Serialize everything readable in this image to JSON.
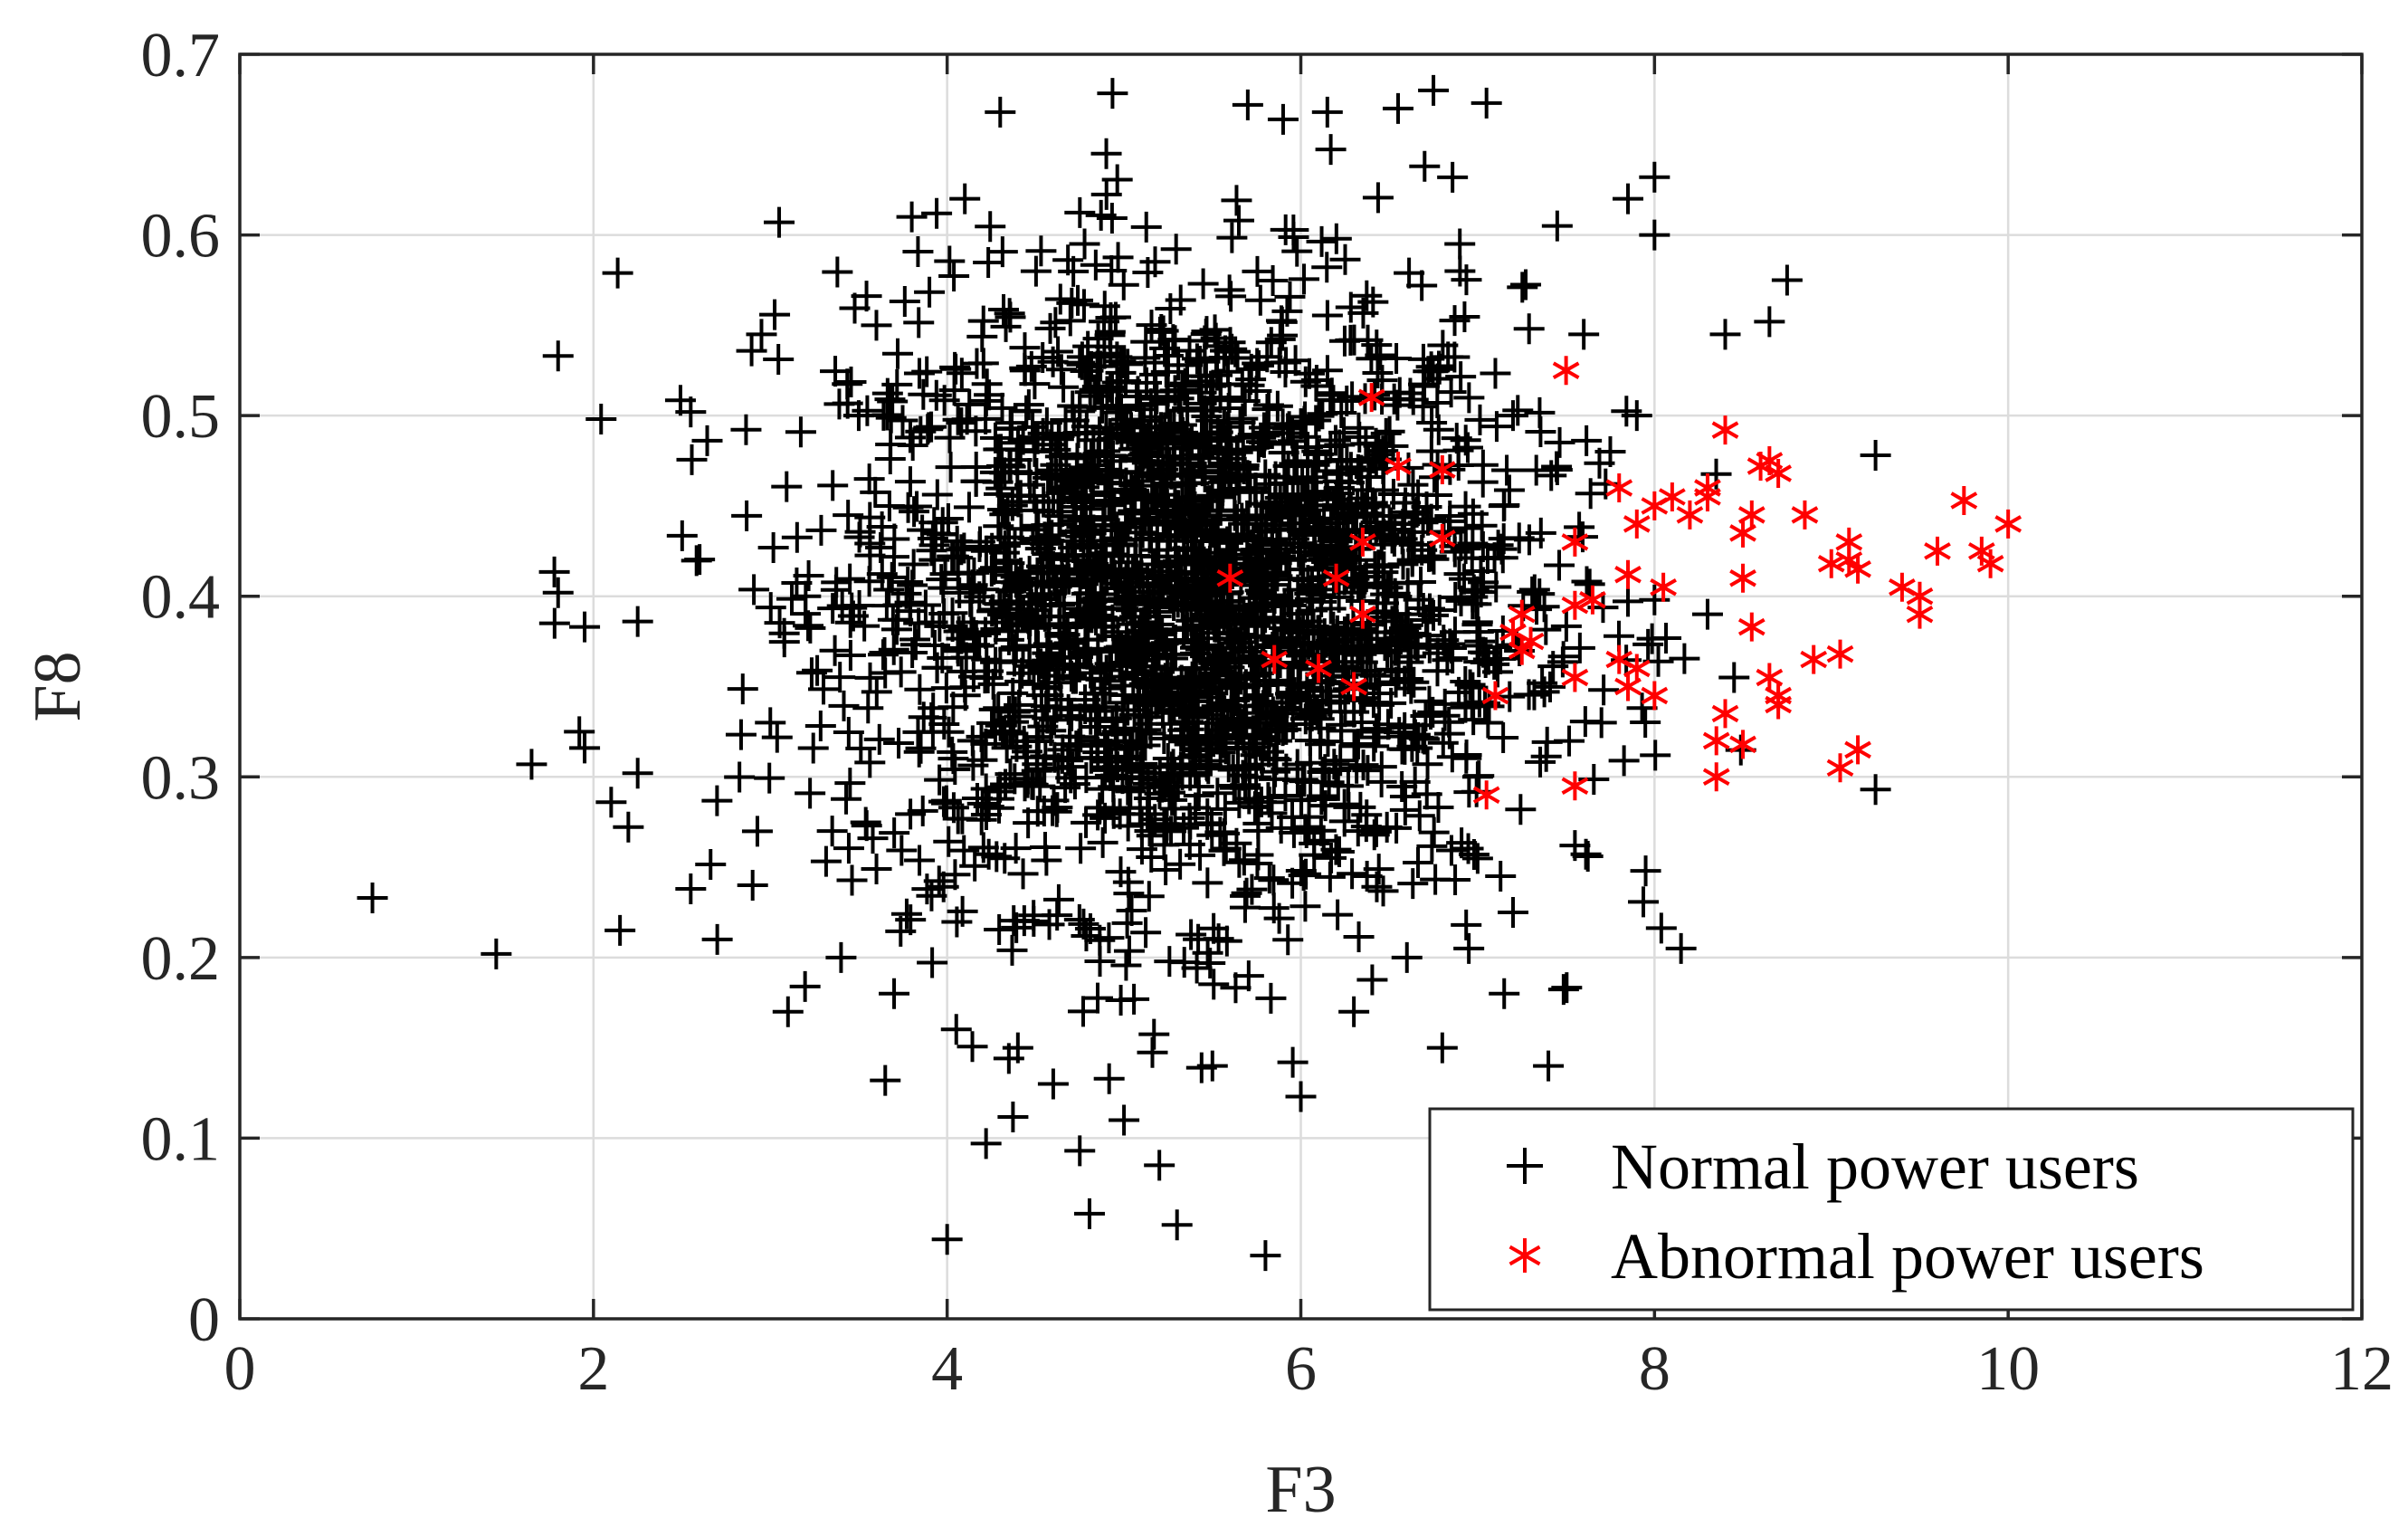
{
  "chart_data": {
    "type": "scatter",
    "xlabel": "F3",
    "ylabel": "F8",
    "xlim": [
      0,
      12
    ],
    "ylim": [
      0,
      0.7
    ],
    "x_ticks": [
      0,
      2,
      4,
      6,
      8,
      10,
      12
    ],
    "y_ticks": [
      0,
      0.1,
      0.2,
      0.3,
      0.4,
      0.5,
      0.6,
      0.7
    ],
    "grid": true,
    "legend_position": "bottom-right",
    "series": [
      {
        "name": "Normal power users",
        "marker": "plus",
        "color": "#000000",
        "distribution_note": "dense cluster centred near F3 ≈ 5.3, F8 ≈ 0.40; only outlying points listed individually",
        "points": [
          [
            0.75,
            0.233
          ],
          [
            1.45,
            0.202
          ],
          [
            1.65,
            0.307
          ],
          [
            1.8,
            0.533
          ],
          [
            1.8,
            0.402
          ],
          [
            1.78,
            0.385
          ],
          [
            1.95,
            0.383
          ],
          [
            1.92,
            0.325
          ],
          [
            1.95,
            0.316
          ],
          [
            2.1,
            0.286
          ],
          [
            2.15,
            0.215
          ],
          [
            2.25,
            0.302
          ],
          [
            2.25,
            0.386
          ],
          [
            2.55,
            0.502
          ],
          [
            2.55,
            0.238
          ],
          [
            2.7,
            0.21
          ],
          [
            2.95,
            0.545
          ],
          [
            3.05,
            0.607
          ],
          [
            3.1,
            0.17
          ],
          [
            3.65,
            0.132
          ],
          [
            4.0,
            0.044
          ],
          [
            4.22,
            0.097
          ],
          [
            4.3,
            0.668
          ],
          [
            4.75,
            0.093
          ],
          [
            5.2,
            0.085
          ],
          [
            5.3,
            0.052
          ],
          [
            5.8,
            0.035
          ],
          [
            6.0,
            0.123
          ],
          [
            4.9,
            0.645
          ],
          [
            5.7,
            0.672
          ],
          [
            5.9,
            0.664
          ],
          [
            6.15,
            0.668
          ],
          [
            6.55,
            0.67
          ],
          [
            6.75,
            0.68
          ],
          [
            7.05,
            0.673
          ],
          [
            6.7,
            0.638
          ],
          [
            7.45,
            0.605
          ],
          [
            7.4,
            0.14
          ],
          [
            8.0,
            0.632
          ],
          [
            8.0,
            0.6
          ],
          [
            7.85,
            0.62
          ],
          [
            8.65,
            0.552
          ],
          [
            8.75,
            0.575
          ],
          [
            8.4,
            0.545
          ],
          [
            8.15,
            0.205
          ],
          [
            7.95,
            0.248
          ],
          [
            9.25,
            0.478
          ],
          [
            9.25,
            0.293
          ],
          [
            7.55,
            0.262
          ],
          [
            7.2,
            0.225
          ],
          [
            6.95,
            0.205
          ],
          [
            7.15,
            0.18
          ],
          [
            8.0,
            0.398
          ],
          [
            8.45,
            0.355
          ],
          [
            8.3,
            0.39
          ],
          [
            7.7,
            0.33
          ],
          [
            7.9,
            0.5
          ],
          [
            7.6,
            0.545
          ],
          [
            7.75,
            0.48
          ],
          [
            7.45,
            0.47
          ],
          [
            3.2,
            0.4
          ],
          [
            3.0,
            0.33
          ],
          [
            2.9,
            0.24
          ],
          [
            3.35,
            0.27
          ],
          [
            3.5,
            0.5
          ],
          [
            3.6,
            0.55
          ],
          [
            3.8,
            0.61
          ],
          [
            4.1,
            0.62
          ],
          [
            3.4,
            0.2
          ],
          [
            3.7,
            0.18
          ],
          [
            4.4,
            0.15
          ],
          [
            4.6,
            0.13
          ],
          [
            5.0,
            0.11
          ],
          [
            5.5,
            0.14
          ],
          [
            6.3,
            0.17
          ],
          [
            6.6,
            0.2
          ],
          [
            6.8,
            0.15
          ],
          [
            7.0,
            0.3
          ],
          [
            7.2,
            0.5
          ],
          [
            6.9,
            0.58
          ]
        ]
      },
      {
        "name": "Abnormal power users",
        "marker": "asterisk",
        "color": "#ff0000",
        "points": [
          [
            6.4,
            0.51
          ],
          [
            6.55,
            0.472
          ],
          [
            6.8,
            0.47
          ],
          [
            6.8,
            0.432
          ],
          [
            6.35,
            0.43
          ],
          [
            6.35,
            0.39
          ],
          [
            6.3,
            0.35
          ],
          [
            5.6,
            0.41
          ],
          [
            6.2,
            0.41
          ],
          [
            6.1,
            0.36
          ],
          [
            5.85,
            0.365
          ],
          [
            7.5,
            0.525
          ],
          [
            7.55,
            0.43
          ],
          [
            7.55,
            0.395
          ],
          [
            7.65,
            0.398
          ],
          [
            7.8,
            0.46
          ],
          [
            7.9,
            0.44
          ],
          [
            8.0,
            0.45
          ],
          [
            8.1,
            0.455
          ],
          [
            8.2,
            0.445
          ],
          [
            8.3,
            0.46
          ],
          [
            8.4,
            0.492
          ],
          [
            8.5,
            0.435
          ],
          [
            8.55,
            0.445
          ],
          [
            8.5,
            0.41
          ],
          [
            8.6,
            0.472
          ],
          [
            8.65,
            0.475
          ],
          [
            8.7,
            0.468
          ],
          [
            8.85,
            0.445
          ],
          [
            8.55,
            0.383
          ],
          [
            7.85,
            0.412
          ],
          [
            8.05,
            0.405
          ],
          [
            7.1,
            0.345
          ],
          [
            7.2,
            0.38
          ],
          [
            7.25,
            0.39
          ],
          [
            7.3,
            0.375
          ],
          [
            7.25,
            0.37
          ],
          [
            7.05,
            0.29
          ],
          [
            7.55,
            0.355
          ],
          [
            7.55,
            0.295
          ],
          [
            7.8,
            0.365
          ],
          [
            7.85,
            0.35
          ],
          [
            7.9,
            0.36
          ],
          [
            8.0,
            0.345
          ],
          [
            8.35,
            0.32
          ],
          [
            8.4,
            0.335
          ],
          [
            8.5,
            0.318
          ],
          [
            8.35,
            0.3
          ],
          [
            8.65,
            0.355
          ],
          [
            8.7,
            0.345
          ],
          [
            8.7,
            0.34
          ],
          [
            8.9,
            0.365
          ],
          [
            9.05,
            0.368
          ],
          [
            9.05,
            0.305
          ],
          [
            9.15,
            0.315
          ],
          [
            9.0,
            0.418
          ],
          [
            9.1,
            0.43
          ],
          [
            9.15,
            0.415
          ],
          [
            9.4,
            0.405
          ],
          [
            9.5,
            0.4
          ],
          [
            9.5,
            0.39
          ],
          [
            9.6,
            0.425
          ],
          [
            9.75,
            0.453
          ],
          [
            9.85,
            0.425
          ],
          [
            9.9,
            0.418
          ],
          [
            10.0,
            0.44
          ],
          [
            9.1,
            0.42
          ],
          [
            8.3,
            0.455
          ]
        ]
      }
    ]
  }
}
